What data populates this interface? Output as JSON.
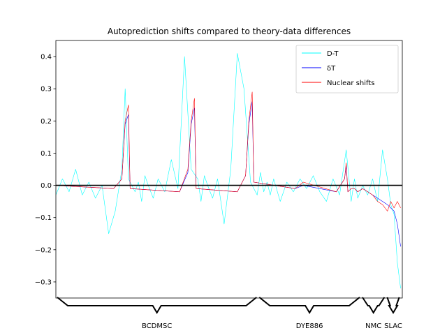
{
  "chart_data": {
    "type": "line",
    "title": "Autoprediction shifts compared to theory-data differences",
    "xlabel": "",
    "ylabel": "",
    "ylim": [
      -0.35,
      0.45
    ],
    "yticks": [
      -0.3,
      -0.2,
      -0.1,
      0.0,
      0.1,
      0.2,
      0.3,
      0.4
    ],
    "ytick_labels": [
      "−0.3",
      "−0.2",
      "−0.1",
      "0.0",
      "0.1",
      "0.2",
      "0.3",
      "0.4"
    ],
    "xlim": [
      0,
      420
    ],
    "x_ticks_shown": false,
    "grid": false,
    "legend_position": "top-right",
    "zero_line": true,
    "colors": {
      "D-T": "#00ffff",
      "dT": "#0000ff",
      "nuclear": "#ff0000",
      "axes": "#000000"
    },
    "series": [
      {
        "name": "D-T",
        "style": "thin noisy line",
        "x": [
          0,
          8,
          16,
          24,
          32,
          40,
          48,
          56,
          64,
          72,
          80,
          84,
          88,
          96,
          100,
          104,
          108,
          112,
          118,
          124,
          132,
          140,
          148,
          156,
          164,
          172,
          176,
          180,
          184,
          190,
          196,
          204,
          212,
          220,
          228,
          236,
          244,
          248,
          252,
          256,
          260,
          264,
          272,
          280,
          288,
          296,
          304,
          312,
          320,
          328,
          336,
          344,
          352,
          358,
          362,
          366,
          372,
          378,
          384,
          390,
          396,
          402,
          406,
          410,
          414,
          418
        ],
        "y": [
          -0.03,
          0.02,
          -0.02,
          0.05,
          -0.03,
          0.01,
          -0.04,
          0.0,
          -0.15,
          -0.08,
          0.05,
          0.3,
          0.02,
          -0.02,
          0.01,
          -0.05,
          0.03,
          0.0,
          -0.04,
          0.02,
          -0.02,
          0.08,
          -0.01,
          0.4,
          0.05,
          0.02,
          -0.05,
          0.03,
          0.0,
          -0.04,
          0.02,
          -0.12,
          0.05,
          0.41,
          0.3,
          0.01,
          -0.03,
          0.04,
          -0.02,
          0.01,
          -0.03,
          0.02,
          -0.05,
          0.01,
          -0.02,
          0.02,
          -0.01,
          0.03,
          -0.02,
          -0.05,
          0.02,
          -0.03,
          0.11,
          -0.05,
          0.02,
          -0.04,
          0.0,
          -0.03,
          0.02,
          -0.05,
          0.11,
          0.02,
          -0.06,
          -0.09,
          -0.24,
          -0.32
        ]
      },
      {
        "name": "δT",
        "style": "smooth line",
        "x": [
          0,
          70,
          80,
          84,
          88,
          90,
          150,
          160,
          164,
          168,
          170,
          220,
          230,
          234,
          238,
          240,
          290,
          300,
          340,
          350,
          352,
          354,
          358,
          362,
          366,
          372,
          378,
          384,
          390,
          396,
          402,
          406,
          410,
          414,
          418
        ],
        "y": [
          0.0,
          -0.01,
          0.02,
          0.19,
          0.22,
          -0.01,
          -0.02,
          0.04,
          0.19,
          0.24,
          -0.01,
          -0.02,
          0.03,
          0.19,
          0.26,
          0.01,
          -0.01,
          0.0,
          -0.02,
          0.02,
          0.06,
          -0.02,
          -0.01,
          -0.01,
          -0.02,
          -0.01,
          -0.02,
          -0.03,
          -0.04,
          -0.05,
          -0.06,
          -0.07,
          -0.08,
          -0.12,
          -0.19
        ]
      },
      {
        "name": "Nuclear shifts",
        "style": "smooth line",
        "x": [
          0,
          70,
          80,
          84,
          88,
          90,
          150,
          160,
          164,
          168,
          170,
          220,
          230,
          234,
          238,
          240,
          290,
          300,
          340,
          350,
          352,
          354,
          358,
          362,
          366,
          372,
          378,
          384,
          390,
          396,
          402,
          406,
          410,
          414,
          418
        ],
        "y": [
          0.0,
          -0.01,
          0.02,
          0.2,
          0.25,
          -0.01,
          -0.02,
          0.05,
          0.2,
          0.27,
          -0.01,
          -0.02,
          0.03,
          0.2,
          0.29,
          0.01,
          -0.01,
          0.01,
          -0.02,
          0.02,
          0.07,
          -0.02,
          -0.01,
          -0.01,
          -0.02,
          -0.01,
          -0.02,
          -0.03,
          -0.05,
          -0.06,
          -0.08,
          -0.05,
          -0.07,
          -0.05,
          -0.07
        ]
      }
    ],
    "legend": [
      "D-T",
      "δT",
      "Nuclear shifts"
    ],
    "groups": [
      {
        "name": "BCDMSC",
        "start": 0,
        "end": 245
      },
      {
        "name": "DYE886",
        "start": 245,
        "end": 370
      },
      {
        "name": "NMC",
        "start": 370,
        "end": 400
      },
      {
        "name": "SLAC",
        "start": 400,
        "end": 418
      }
    ]
  }
}
